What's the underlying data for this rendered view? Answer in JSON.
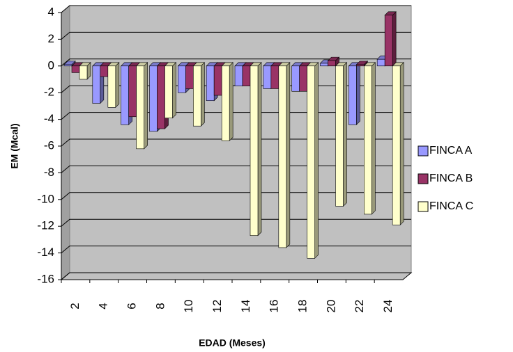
{
  "chart_data": {
    "type": "bar3d",
    "x_label": "EDAD (Meses)",
    "y_label": "EM (Mcal)",
    "categories": [
      "2",
      "4",
      "6",
      "8",
      "10",
      "12",
      "14",
      "16",
      "18",
      "20",
      "22",
      "24"
    ],
    "series": [
      {
        "name": "FINCA A",
        "color": "#9999ff",
        "values": [
          0.1,
          -2.8,
          -4.4,
          -4.9,
          -2.0,
          -2.6,
          -1.5,
          -1.7,
          -1.9,
          0.2,
          -4.4,
          0.5
        ]
      },
      {
        "name": "FINCA B",
        "color": "#993366",
        "values": [
          -0.5,
          -0.8,
          -3.8,
          -4.7,
          -1.7,
          -2.2,
          -1.5,
          -1.7,
          -1.9,
          0.4,
          0.1,
          3.8
        ]
      },
      {
        "name": "FINCA C",
        "color": "#ffffcc",
        "values": [
          -1.0,
          -3.1,
          -6.2,
          -3.9,
          -4.5,
          -5.6,
          -12.7,
          -13.6,
          -14.4,
          -10.5,
          -11.1,
          -11.9
        ]
      }
    ],
    "ylim": [
      -16,
      4
    ],
    "yticks": [
      -16,
      -14,
      -12,
      -10,
      -8,
      -6,
      -4,
      -2,
      0,
      2,
      4
    ],
    "grid": true
  }
}
